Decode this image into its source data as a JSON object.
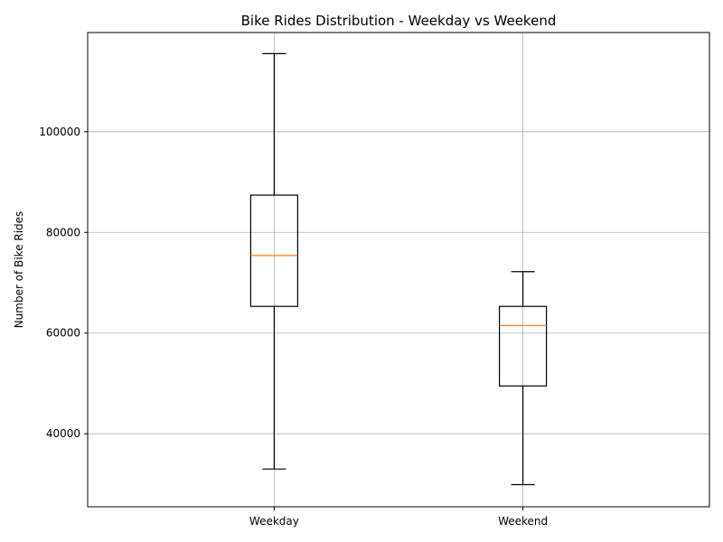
{
  "chart_data": {
    "type": "box",
    "title": "Bike Rides Distribution - Weekday vs Weekend",
    "xlabel": "",
    "ylabel": "Number of Bike Rides",
    "categories": [
      "Weekday",
      "Weekend"
    ],
    "boxes": [
      {
        "category": "Weekday",
        "whisker_low": 33000,
        "q1": 65300,
        "median": 75400,
        "q3": 87400,
        "whisker_high": 115500
      },
      {
        "category": "Weekend",
        "whisker_low": 29900,
        "q1": 49500,
        "median": 61500,
        "q3": 65300,
        "whisker_high": 72200
      }
    ],
    "ylim": [
      25500,
      119700
    ],
    "y_ticks": [
      40000,
      60000,
      80000,
      100000
    ],
    "y_tick_labels": [
      "40000",
      "60000",
      "80000",
      "100000"
    ],
    "grid": true,
    "colors": {
      "box": "#000000",
      "median": "#ff7f0e",
      "grid": "#b0b0b0"
    }
  }
}
